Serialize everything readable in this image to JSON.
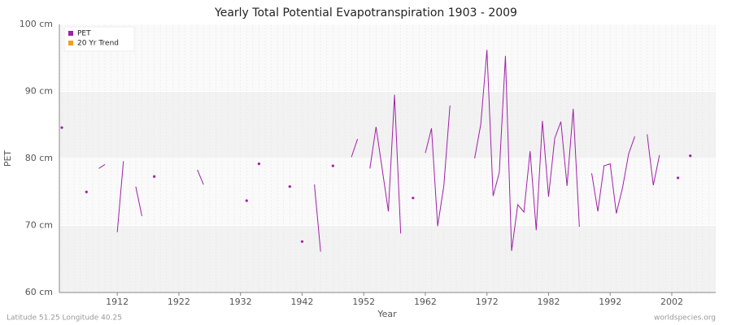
{
  "chart_data": {
    "type": "line",
    "title": "Yearly Total Potential Evapotranspiration 1903 - 2009",
    "x_label": "Year",
    "y_label": "PET",
    "footer_left": "Latitude 51.25 Longitude 40.25",
    "footer_right": "worldspecies.org",
    "legend": "top-left",
    "grid": true,
    "x": [
      1903,
      1904,
      1905,
      1906,
      1907,
      1908,
      1909,
      1910,
      1911,
      1912,
      1913,
      1914,
      1915,
      1916,
      1917,
      1918,
      1919,
      1920,
      1921,
      1922,
      1923,
      1924,
      1925,
      1926,
      1927,
      1928,
      1929,
      1930,
      1931,
      1932,
      1933,
      1934,
      1935,
      1936,
      1937,
      1938,
      1939,
      1940,
      1941,
      1942,
      1943,
      1944,
      1945,
      1946,
      1947,
      1948,
      1949,
      1950,
      1951,
      1952,
      1953,
      1954,
      1955,
      1956,
      1957,
      1958,
      1959,
      1960,
      1961,
      1962,
      1963,
      1964,
      1965,
      1966,
      1967,
      1968,
      1969,
      1970,
      1971,
      1972,
      1973,
      1974,
      1975,
      1976,
      1977,
      1978,
      1979,
      1980,
      1981,
      1982,
      1983,
      1984,
      1985,
      1986,
      1987,
      1988,
      1989,
      1990,
      1991,
      1992,
      1993,
      1994,
      1995,
      1996,
      1997,
      1998,
      1999,
      2000,
      2001,
      2002,
      2003,
      2004,
      2005,
      2006,
      2007,
      2008,
      2009
    ],
    "series": [
      {
        "name": "PET",
        "color": "#a020a8",
        "values": [
          84.6,
          null,
          null,
          null,
          75.0,
          null,
          78.5,
          79.1,
          null,
          69.0,
          79.6,
          null,
          75.8,
          71.4,
          null,
          77.3,
          null,
          null,
          null,
          null,
          null,
          null,
          78.3,
          76.1,
          null,
          null,
          null,
          null,
          null,
          null,
          73.7,
          null,
          79.2,
          null,
          null,
          null,
          null,
          75.8,
          null,
          67.6,
          null,
          76.1,
          66.1,
          null,
          78.9,
          null,
          null,
          80.2,
          82.9,
          null,
          78.5,
          84.7,
          78.4,
          72.1,
          89.5,
          68.8,
          null,
          74.1,
          null,
          80.8,
          84.5,
          69.9,
          75.9,
          87.9,
          null,
          null,
          null,
          80.0,
          85.1,
          96.2,
          74.4,
          77.9,
          95.3,
          66.2,
          73.1,
          72.0,
          81.1,
          69.3,
          85.6,
          74.3,
          83.0,
          85.5,
          75.9,
          87.4,
          69.8,
          null,
          77.8,
          72.1,
          78.9,
          79.2,
          71.8,
          75.6,
          80.7,
          83.3,
          null,
          83.6,
          76.0,
          80.5,
          null,
          null,
          77.1,
          null,
          80.4,
          null,
          null,
          null,
          null
        ]
      },
      {
        "name": "20 Yr Trend",
        "color": "#f0a020",
        "values": [
          null,
          null,
          null,
          null,
          null,
          null,
          null,
          null,
          null,
          null,
          null,
          null,
          null,
          null,
          null,
          null,
          null,
          null,
          null,
          null,
          null,
          null,
          null,
          null,
          null,
          null,
          null,
          null,
          null,
          null,
          null,
          null,
          null,
          null,
          null,
          null,
          null,
          null,
          null,
          null,
          null,
          null,
          null,
          null,
          null,
          null,
          null,
          null,
          null,
          null,
          null,
          null,
          null,
          null,
          null,
          null,
          null,
          null,
          null,
          null,
          null,
          null,
          null,
          null,
          null,
          null,
          null,
          null,
          null,
          null,
          null,
          null,
          null,
          null,
          null,
          null,
          null,
          null,
          null,
          null,
          null,
          null,
          null,
          null,
          null,
          null,
          null,
          null,
          null,
          null,
          null,
          null,
          null,
          null,
          null,
          null,
          null,
          null,
          null,
          null,
          null,
          null,
          null,
          null,
          null,
          null,
          null
        ]
      }
    ],
    "xlim": [
      1903,
      2009
    ],
    "xticks": [
      1912,
      1922,
      1932,
      1942,
      1952,
      1962,
      1972,
      1982,
      1992,
      2002
    ],
    "ylim": [
      60,
      100
    ],
    "yticks": [
      {
        "value": 60,
        "label": "60 cm"
      },
      {
        "value": 70,
        "label": "70 cm"
      },
      {
        "value": 80,
        "label": "80 cm"
      },
      {
        "value": 90,
        "label": "90 cm"
      },
      {
        "value": 100,
        "label": "100 cm"
      }
    ]
  }
}
